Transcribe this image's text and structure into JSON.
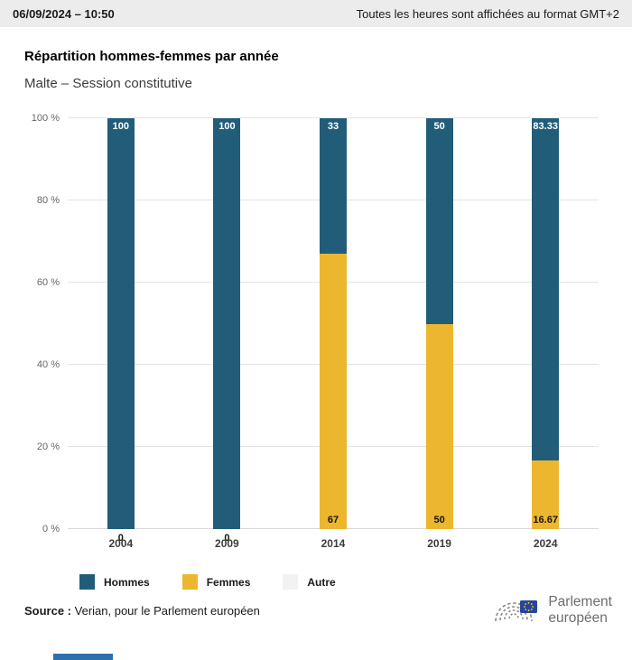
{
  "header": {
    "datetime": "06/09/2024 – 10:50",
    "timezone_note": "Toutes les heures sont affichées au format GMT+2"
  },
  "title": "Répartition hommes-femmes par année",
  "subtitle": "Malte – Session constitutive",
  "chart_data": {
    "type": "bar",
    "stacked": true,
    "title": "Répartition hommes-femmes par année",
    "subtitle": "Malte – Session constitutive",
    "categories": [
      "2004",
      "2009",
      "2014",
      "2019",
      "2024"
    ],
    "series": [
      {
        "name": "Hommes",
        "color": "#215d79",
        "values": [
          100,
          100,
          33,
          50,
          83.33
        ],
        "data_labels": [
          "100",
          "100",
          "33",
          "50",
          "83.33"
        ]
      },
      {
        "name": "Femmes",
        "color": "#ecb62f",
        "values": [
          0,
          0,
          67,
          50,
          16.67
        ],
        "data_labels": [
          "0",
          "0",
          "67",
          "50",
          "16.67"
        ]
      },
      {
        "name": "Autre",
        "color": "#f2f2f2",
        "values": [
          0,
          0,
          0,
          0,
          0
        ]
      }
    ],
    "ylim": [
      0,
      100
    ],
    "yticks": [
      "0 %",
      "20 %",
      "40 %",
      "60 %",
      "80 %",
      "100 %"
    ],
    "grid": true,
    "legend_position": "bottom"
  },
  "legend": {
    "items": [
      {
        "label": "Hommes",
        "color": "#215d79"
      },
      {
        "label": "Femmes",
        "color": "#ecb62f"
      },
      {
        "label": "Autre",
        "color": "#f2f2f2"
      }
    ]
  },
  "source": {
    "label": "Source :",
    "text": "Verian, pour le Parlement européen"
  },
  "logo": {
    "line1": "Parlement",
    "line2": "européen"
  }
}
